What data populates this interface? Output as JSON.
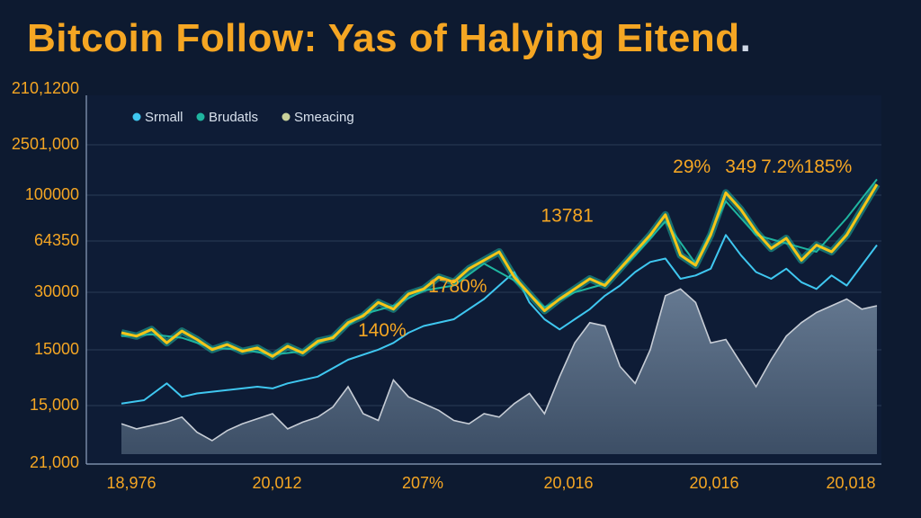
{
  "chart_data": {
    "type": "line",
    "title": "Bitcoin Follow: Yas of  Halying Eitend",
    "y_tick_labels": [
      "210,1200",
      "2501,000",
      "100000",
      "64350",
      "30000",
      "15000",
      "15,000",
      "21,000"
    ],
    "x_tick_labels": [
      "18,976",
      "20,012",
      "207%",
      "20,016",
      "20,016",
      "20,018"
    ],
    "legend": [
      {
        "name": "Srmall",
        "color": "#3fc7f0"
      },
      {
        "name": "Brudatls",
        "color": "#1fb5a0"
      },
      {
        "name": "Smeacing",
        "color": "#c9d19a"
      }
    ],
    "annotations": [
      {
        "text": "140%",
        "x": 34.5,
        "y": 0.7
      },
      {
        "text": "1780%",
        "x": 44.5,
        "y": 0.96
      },
      {
        "text": "13781",
        "x": 59,
        "y": 1.38
      },
      {
        "text": "29%",
        "x": 75.5,
        "y": 1.67
      },
      {
        "text": "349",
        "x": 82,
        "y": 1.67
      },
      {
        "text": "7.2%",
        "x": 87.5,
        "y": 1.67
      },
      {
        "text": "185%",
        "x": 93.5,
        "y": 1.67
      }
    ],
    "x_range": [
      0,
      100
    ],
    "y_range": [
      0,
      2
    ],
    "grid": true,
    "series": [
      {
        "name": "Srmall",
        "color": "#f5c518",
        "x": [
          0,
          2,
          4,
          6,
          8,
          10,
          12,
          14,
          16,
          18,
          20,
          22,
          24,
          26,
          28,
          30,
          32,
          34,
          36,
          38,
          40,
          42,
          44,
          46,
          48,
          50,
          52,
          54,
          56,
          58,
          60,
          62,
          64,
          66,
          68,
          70,
          72,
          74,
          76,
          78,
          80,
          82,
          84,
          86,
          88,
          90,
          92,
          94,
          96,
          98,
          100
        ],
        "y": [
          0.72,
          0.7,
          0.74,
          0.66,
          0.73,
          0.68,
          0.62,
          0.65,
          0.61,
          0.63,
          0.58,
          0.64,
          0.6,
          0.67,
          0.69,
          0.78,
          0.82,
          0.9,
          0.86,
          0.95,
          0.98,
          1.05,
          1.02,
          1.1,
          1.15,
          1.2,
          1.05,
          0.95,
          0.85,
          0.92,
          0.98,
          1.04,
          1.0,
          1.1,
          1.2,
          1.3,
          1.42,
          1.18,
          1.12,
          1.3,
          1.55,
          1.45,
          1.32,
          1.22,
          1.28,
          1.15,
          1.24,
          1.2,
          1.3,
          1.45,
          1.6
        ]
      },
      {
        "name": "Brudatls",
        "color": "#1fb5a0",
        "x": [
          0,
          4,
          8,
          12,
          16,
          20,
          24,
          28,
          32,
          36,
          40,
          44,
          48,
          52,
          56,
          60,
          64,
          68,
          72,
          76,
          80,
          84,
          88,
          92,
          96,
          100
        ],
        "y": [
          0.7,
          0.71,
          0.69,
          0.63,
          0.62,
          0.59,
          0.61,
          0.7,
          0.83,
          0.88,
          0.97,
          1.0,
          1.13,
          1.03,
          0.87,
          0.96,
          1.01,
          1.18,
          1.38,
          1.13,
          1.5,
          1.3,
          1.25,
          1.2,
          1.4,
          1.63
        ]
      },
      {
        "name": "Smeacing",
        "color": "#3fc7f0",
        "x": [
          0,
          3,
          6,
          8,
          10,
          14,
          18,
          20,
          22,
          26,
          30,
          34,
          36,
          38,
          40,
          44,
          48,
          50,
          52,
          54,
          56,
          58,
          60,
          62,
          64,
          66,
          68,
          70,
          72,
          74,
          76,
          78,
          80,
          82,
          84,
          86,
          88,
          90,
          92,
          94,
          96,
          98,
          100
        ],
        "y": [
          0.3,
          0.32,
          0.42,
          0.34,
          0.36,
          0.38,
          0.4,
          0.39,
          0.42,
          0.46,
          0.56,
          0.62,
          0.66,
          0.72,
          0.76,
          0.8,
          0.92,
          1.0,
          1.08,
          0.9,
          0.8,
          0.74,
          0.8,
          0.86,
          0.94,
          1.0,
          1.08,
          1.14,
          1.16,
          1.04,
          1.06,
          1.1,
          1.3,
          1.18,
          1.08,
          1.04,
          1.1,
          1.02,
          0.98,
          1.06,
          1.0,
          1.12,
          1.24
        ]
      },
      {
        "name": "",
        "color": "#c7cdd6",
        "type": "area",
        "x": [
          0,
          2,
          4,
          6,
          8,
          10,
          12,
          14,
          16,
          18,
          20,
          22,
          24,
          26,
          28,
          30,
          32,
          34,
          36,
          38,
          40,
          42,
          44,
          46,
          48,
          50,
          52,
          54,
          56,
          58,
          60,
          62,
          64,
          66,
          68,
          70,
          72,
          74,
          76,
          78,
          80,
          82,
          84,
          86,
          88,
          90,
          92,
          94,
          96,
          98,
          100
        ],
        "y": [
          0.18,
          0.15,
          0.17,
          0.19,
          0.22,
          0.13,
          0.08,
          0.14,
          0.18,
          0.21,
          0.24,
          0.15,
          0.19,
          0.22,
          0.28,
          0.4,
          0.24,
          0.2,
          0.44,
          0.34,
          0.3,
          0.26,
          0.2,
          0.18,
          0.24,
          0.22,
          0.3,
          0.36,
          0.24,
          0.46,
          0.66,
          0.78,
          0.76,
          0.52,
          0.42,
          0.62,
          0.94,
          0.98,
          0.9,
          0.66,
          0.68,
          0.54,
          0.4,
          0.56,
          0.7,
          0.78,
          0.84,
          0.88,
          0.92,
          0.86,
          0.88
        ]
      }
    ]
  }
}
